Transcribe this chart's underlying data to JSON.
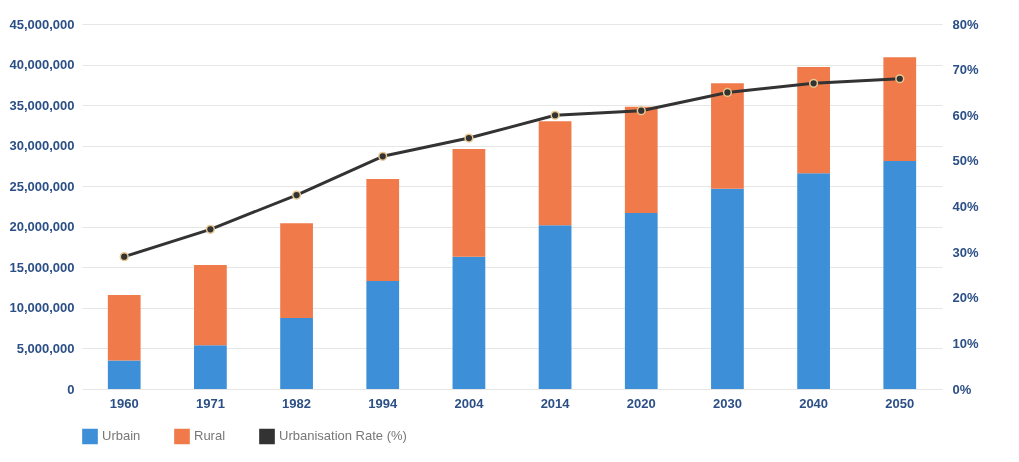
{
  "chart_data": {
    "type": "bar",
    "stacked": true,
    "categories": [
      "1960",
      "1971",
      "1982",
      "1994",
      "2004",
      "2014",
      "2020",
      "2030",
      "2040",
      "2050"
    ],
    "series": [
      {
        "name": "Urbain",
        "color": "#3d8fd8",
        "values": [
          3500000,
          5400000,
          8750000,
          13300000,
          16300000,
          20200000,
          21700000,
          24700000,
          26600000,
          28100000
        ]
      },
      {
        "name": "Rural",
        "color": "#f07a4a",
        "values": [
          8100000,
          9900000,
          11700000,
          12600000,
          13300000,
          12800000,
          13100000,
          13000000,
          13100000,
          12800000
        ]
      },
      {
        "name": "Urbanisation Rate (%)",
        "type": "line",
        "axis": "y2",
        "color": "#333333",
        "marker": "circle",
        "values": [
          29,
          35,
          42.5,
          51,
          55,
          60,
          61,
          65,
          67,
          68
        ]
      }
    ],
    "ylim": [
      0,
      45000000
    ],
    "yticks": [
      {
        "value": 0,
        "label": "0"
      },
      {
        "value": 5000000,
        "label": "5,000,000"
      },
      {
        "value": 10000000,
        "label": "10,000,000"
      },
      {
        "value": 15000000,
        "label": "15,000,000"
      },
      {
        "value": 20000000,
        "label": "20,000,000"
      },
      {
        "value": 25000000,
        "label": "25,000,000"
      },
      {
        "value": 30000000,
        "label": "30,000,000"
      },
      {
        "value": 35000000,
        "label": "35,000,000"
      },
      {
        "value": 40000000,
        "label": "40,000,000"
      },
      {
        "value": 45000000,
        "label": "45,000,000"
      }
    ],
    "y2lim": [
      0,
      80
    ],
    "y2ticks": [
      {
        "value": 0,
        "label": "0%"
      },
      {
        "value": 10,
        "label": "10%"
      },
      {
        "value": 20,
        "label": "20%"
      },
      {
        "value": 30,
        "label": "30%"
      },
      {
        "value": 40,
        "label": "40%"
      },
      {
        "value": 50,
        "label": "50%"
      },
      {
        "value": 60,
        "label": "60%"
      },
      {
        "value": 70,
        "label": "70%"
      },
      {
        "value": 80,
        "label": "80%"
      }
    ],
    "grid": "y",
    "legend": "bottom"
  }
}
